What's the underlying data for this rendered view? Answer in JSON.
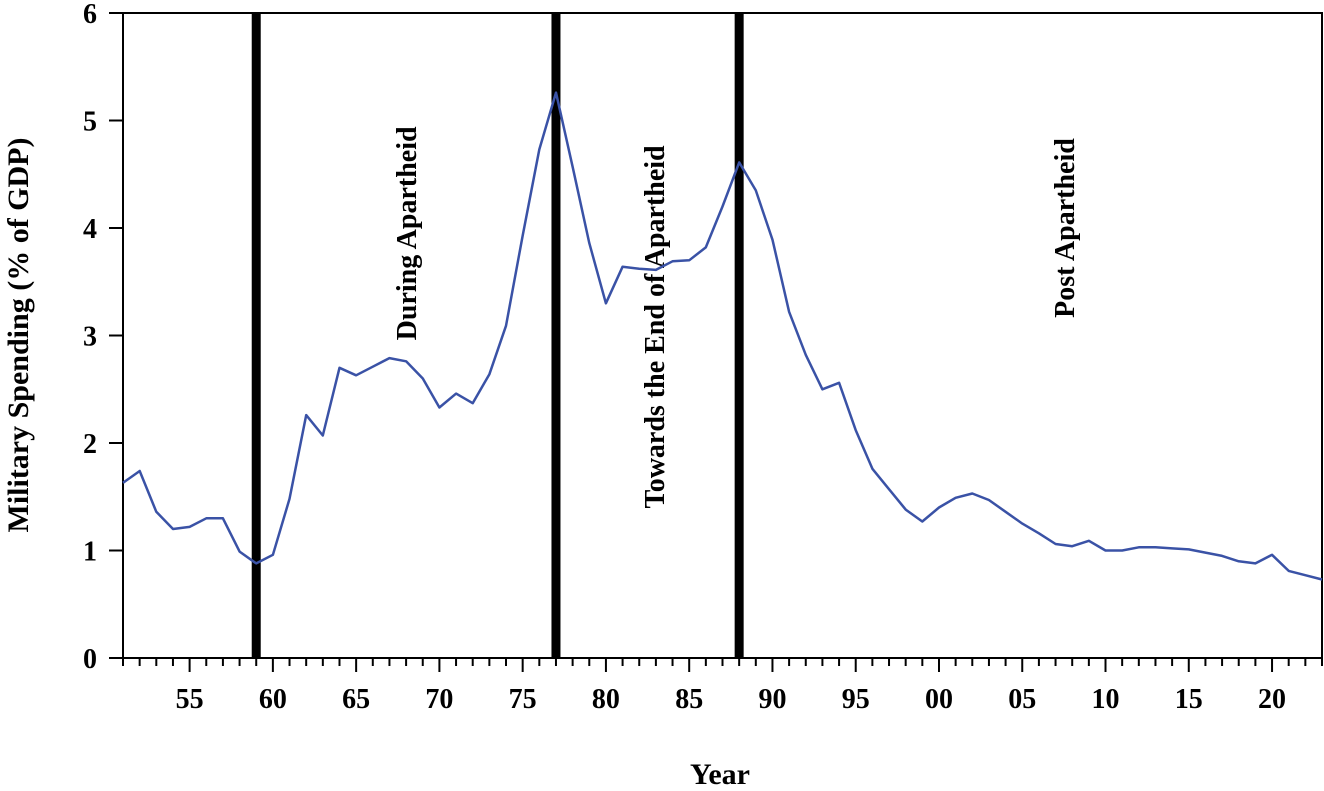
{
  "chart_data": {
    "type": "line",
    "title": "",
    "xlabel": "Year",
    "ylabel": "Military Spending (% of GDP)",
    "xlim": [
      1951,
      2023
    ],
    "ylim": [
      0,
      6
    ],
    "grid": false,
    "legend": null,
    "line_color": "#3a52a6",
    "yticks": [
      0,
      1,
      2,
      3,
      4,
      5,
      6
    ],
    "xticks": [
      {
        "year": 1955,
        "label": "55"
      },
      {
        "year": 1960,
        "label": "60"
      },
      {
        "year": 1965,
        "label": "65"
      },
      {
        "year": 1970,
        "label": "70"
      },
      {
        "year": 1975,
        "label": "75"
      },
      {
        "year": 1980,
        "label": "80"
      },
      {
        "year": 1985,
        "label": "85"
      },
      {
        "year": 1990,
        "label": "90"
      },
      {
        "year": 1995,
        "label": "95"
      },
      {
        "year": 2000,
        "label": "00"
      },
      {
        "year": 2005,
        "label": "05"
      },
      {
        "year": 2010,
        "label": "10"
      },
      {
        "year": 2015,
        "label": "15"
      },
      {
        "year": 2020,
        "label": "20"
      }
    ],
    "vertical_lines": [
      1959,
      1977,
      1988
    ],
    "annotations": [
      {
        "text": "During Apartheid",
        "x_year": 1968,
        "y_center": 3.95
      },
      {
        "text": "Towards the End of Apartheid",
        "x_year": 1982.9,
        "y_center": 3.08
      },
      {
        "text": "Post Apartheid",
        "x_year": 2007.5,
        "y_center": 4.0
      }
    ],
    "series": [
      {
        "name": "Military Spending (% of GDP)",
        "x": [
          1951,
          1952,
          1953,
          1954,
          1955,
          1956,
          1957,
          1958,
          1959,
          1960,
          1961,
          1962,
          1963,
          1964,
          1965,
          1966,
          1967,
          1968,
          1969,
          1970,
          1971,
          1972,
          1973,
          1974,
          1975,
          1976,
          1977,
          1978,
          1979,
          1980,
          1981,
          1982,
          1983,
          1984,
          1985,
          1986,
          1987,
          1988,
          1989,
          1990,
          1991,
          1992,
          1993,
          1994,
          1995,
          1996,
          1997,
          1998,
          1999,
          2000,
          2001,
          2002,
          2003,
          2004,
          2005,
          2006,
          2007,
          2008,
          2009,
          2010,
          2011,
          2012,
          2013,
          2014,
          2015,
          2016,
          2017,
          2018,
          2019,
          2020,
          2021,
          2022,
          2023
        ],
        "values": [
          1.63,
          1.74,
          1.36,
          1.2,
          1.22,
          1.3,
          1.3,
          0.99,
          0.88,
          0.96,
          1.48,
          2.26,
          2.07,
          2.7,
          2.63,
          2.71,
          2.79,
          2.76,
          2.6,
          2.33,
          2.46,
          2.37,
          2.64,
          3.09,
          3.93,
          4.73,
          5.26,
          4.57,
          3.86,
          3.3,
          3.64,
          3.62,
          3.61,
          3.69,
          3.7,
          3.82,
          4.2,
          4.61,
          4.35,
          3.89,
          3.22,
          2.82,
          2.5,
          2.56,
          2.12,
          1.76,
          1.57,
          1.38,
          1.27,
          1.4,
          1.49,
          1.53,
          1.47,
          1.36,
          1.25,
          1.16,
          1.06,
          1.04,
          1.09,
          1.0,
          1.0,
          1.03,
          1.03,
          1.02,
          1.01,
          0.98,
          0.95,
          0.9,
          0.88,
          0.96,
          0.81,
          0.77,
          0.73
        ]
      }
    ]
  }
}
